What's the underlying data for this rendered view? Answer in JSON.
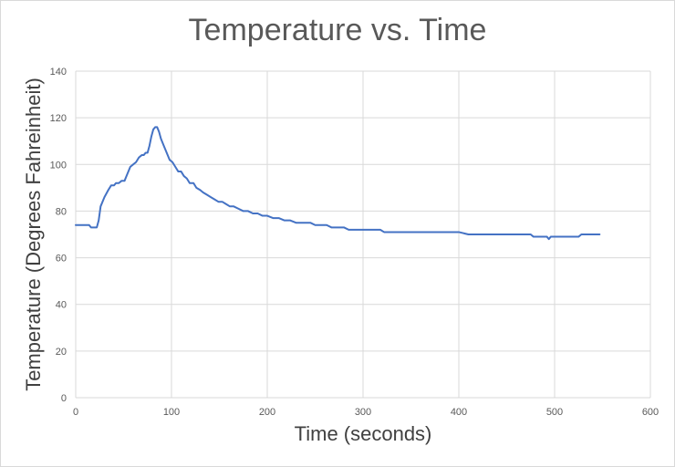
{
  "chart_data": {
    "type": "line",
    "title": "Temperature vs. Time",
    "xlabel": "Time (seconds)",
    "ylabel": "Temperature (Degrees Fahreinheit)",
    "xlim": [
      0,
      600
    ],
    "ylim": [
      0,
      140
    ],
    "xticks": [
      0,
      100,
      200,
      300,
      400,
      500,
      600
    ],
    "yticks": [
      0,
      20,
      40,
      60,
      80,
      100,
      120,
      140
    ],
    "grid": true,
    "legend": "none",
    "colors": {
      "line": "#4472c4",
      "grid": "#d9d9d9",
      "text": "#595959"
    },
    "series": [
      {
        "values": [
          [
            0,
            74
          ],
          [
            14,
            74
          ],
          [
            16,
            73
          ],
          [
            22,
            73
          ],
          [
            24,
            76
          ],
          [
            26,
            82
          ],
          [
            30,
            86
          ],
          [
            34,
            89
          ],
          [
            37,
            91
          ],
          [
            40,
            91
          ],
          [
            42,
            92
          ],
          [
            45,
            92
          ],
          [
            48,
            93
          ],
          [
            51,
            93
          ],
          [
            54,
            96
          ],
          [
            57,
            99
          ],
          [
            60,
            100
          ],
          [
            63,
            101
          ],
          [
            66,
            103
          ],
          [
            69,
            104
          ],
          [
            71,
            104
          ],
          [
            73,
            105
          ],
          [
            75,
            105
          ],
          [
            77,
            108
          ],
          [
            79,
            112
          ],
          [
            81,
            115
          ],
          [
            83,
            116
          ],
          [
            85,
            116
          ],
          [
            87,
            114
          ],
          [
            89,
            111
          ],
          [
            92,
            108
          ],
          [
            95,
            105
          ],
          [
            98,
            102
          ],
          [
            101,
            101
          ],
          [
            104,
            99
          ],
          [
            107,
            97
          ],
          [
            110,
            97
          ],
          [
            113,
            95
          ],
          [
            116,
            94
          ],
          [
            119,
            92
          ],
          [
            123,
            92
          ],
          [
            126,
            90
          ],
          [
            130,
            89
          ],
          [
            133,
            88
          ],
          [
            137,
            87
          ],
          [
            141,
            86
          ],
          [
            145,
            85
          ],
          [
            149,
            84
          ],
          [
            153,
            84
          ],
          [
            157,
            83
          ],
          [
            161,
            82
          ],
          [
            165,
            82
          ],
          [
            170,
            81
          ],
          [
            175,
            80
          ],
          [
            180,
            80
          ],
          [
            185,
            79
          ],
          [
            190,
            79
          ],
          [
            195,
            78
          ],
          [
            200,
            78
          ],
          [
            206,
            77
          ],
          [
            212,
            77
          ],
          [
            218,
            76
          ],
          [
            224,
            76
          ],
          [
            230,
            75
          ],
          [
            245,
            75
          ],
          [
            250,
            74
          ],
          [
            262,
            74
          ],
          [
            267,
            73
          ],
          [
            280,
            73
          ],
          [
            285,
            72
          ],
          [
            318,
            72
          ],
          [
            322,
            71
          ],
          [
            400,
            71
          ],
          [
            410,
            70
          ],
          [
            475,
            70
          ],
          [
            478,
            69
          ],
          [
            492,
            69
          ],
          [
            494,
            68
          ],
          [
            496,
            69
          ],
          [
            525,
            69
          ],
          [
            528,
            70
          ],
          [
            547,
            70
          ]
        ]
      }
    ]
  }
}
